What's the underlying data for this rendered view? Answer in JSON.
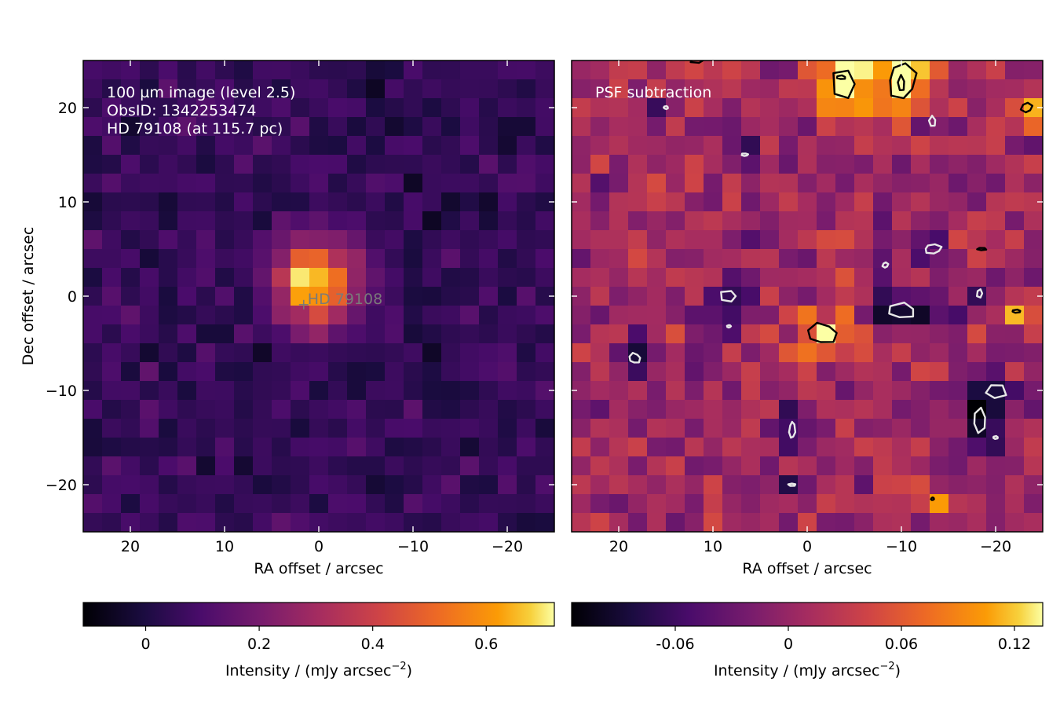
{
  "chart_data": [
    {
      "type": "heatmap",
      "panel": "left",
      "annotations": [
        "100 µm image (level 2.5)",
        "ObsID: 1342253474",
        "HD 79108 (at 115.7 pc)"
      ],
      "xlabel": "RA offset / arcsec",
      "ylabel": "Dec offset / arcsec",
      "xlim": [
        25,
        -25
      ],
      "ylim": [
        -25,
        25
      ],
      "x_ticks": [
        20,
        10,
        0,
        -10,
        -20
      ],
      "x_tick_labels": [
        "20",
        "10",
        "0",
        "−10",
        "−20"
      ],
      "y_ticks": [
        20,
        10,
        0,
        -10,
        -20
      ],
      "y_tick_labels": [
        "20",
        "10",
        "0",
        "−10",
        "−20"
      ],
      "grid": false,
      "pixel_size_arcsec": 2,
      "colormap": "inferno",
      "source": {
        "label": "HD  79108",
        "ra": 1.6,
        "dec": -0.9,
        "marker_color": "#7a7a7a"
      },
      "emission_peak": {
        "ra": 0.3,
        "dec": 1.5,
        "peak_intensity": 0.7,
        "sigma_arcsec": 3.0
      },
      "background_level": 0.05,
      "colorbar": {
        "label": "Intensity / (mJy arcsec",
        "label_sup": "−2",
        "label_end": ")",
        "vmin": -0.11,
        "vmax": 0.72,
        "ticks": [
          0,
          0.2,
          0.4,
          0.6
        ],
        "tick_labels": [
          "0",
          "0.2",
          "0.4",
          "0.6"
        ]
      }
    },
    {
      "type": "heatmap",
      "panel": "right",
      "annotations": [
        "PSF subtraction"
      ],
      "xlabel": "RA offset / arcsec",
      "xlim": [
        25,
        -25
      ],
      "ylim": [
        -25,
        25
      ],
      "x_ticks": [
        20,
        10,
        0,
        -10,
        -20
      ],
      "x_tick_labels": [
        "20",
        "10",
        "0",
        "−10",
        "−20"
      ],
      "grid": false,
      "pixel_size_arcsec": 2,
      "colormap": "inferno",
      "contours": {
        "positive_color": "#000000",
        "negative_color": "#e8e8e8",
        "positive": [
          {
            "ra": -4.0,
            "dec": 22.5,
            "w": 2.6,
            "h": 3.4
          },
          {
            "ra": -3.6,
            "dec": 23.2,
            "w": 1.0,
            "h": 0.4
          },
          {
            "ra": -10.0,
            "dec": 22.8,
            "w": 3.0,
            "h": 3.8
          },
          {
            "ra": -10.0,
            "dec": 22.5,
            "w": 0.8,
            "h": 1.8
          },
          {
            "ra": -23.3,
            "dec": 20.0,
            "w": 1.2,
            "h": 1.1
          },
          {
            "ra": -1.6,
            "dec": -4.0,
            "w": 3.2,
            "h": 2.2
          },
          {
            "ra": -18.5,
            "dec": 5.0,
            "w": 1.0,
            "h": 0.3
          },
          {
            "ra": -22.2,
            "dec": -1.6,
            "w": 1.0,
            "h": 0.3
          },
          {
            "ra": -13.3,
            "dec": -21.5,
            "w": 0.3,
            "h": 0.3
          },
          {
            "ra": 11.7,
            "dec": 25.0,
            "w": 1.4,
            "h": 0.5
          }
        ],
        "negative": [
          {
            "ra": 8.3,
            "dec": 0.0,
            "w": 1.8,
            "h": 1.3
          },
          {
            "ra": -10.0,
            "dec": -1.6,
            "w": 3.0,
            "h": 1.6
          },
          {
            "ra": -13.3,
            "dec": 5.0,
            "w": 1.8,
            "h": 1.0
          },
          {
            "ra": -13.3,
            "dec": 18.5,
            "w": 0.8,
            "h": 1.2
          },
          {
            "ra": -8.3,
            "dec": 3.3,
            "w": 0.6,
            "h": 0.6
          },
          {
            "ra": 18.3,
            "dec": -6.6,
            "w": 1.2,
            "h": 1.1
          },
          {
            "ra": -20.0,
            "dec": -10.1,
            "w": 2.2,
            "h": 1.7
          },
          {
            "ra": -18.3,
            "dec": -13.2,
            "w": 1.4,
            "h": 2.4
          },
          {
            "ra": 1.6,
            "dec": -14.2,
            "w": 0.6,
            "h": 1.8
          },
          {
            "ra": -18.3,
            "dec": 0.3,
            "w": 0.6,
            "h": 0.9
          },
          {
            "ra": 6.6,
            "dec": 15.0,
            "w": 0.7,
            "h": 0.3
          },
          {
            "ra": 15.0,
            "dec": 20.0,
            "w": 0.5,
            "h": 0.3
          },
          {
            "ra": 1.6,
            "dec": -20.0,
            "w": 0.8,
            "h": 0.3
          },
          {
            "ra": -20.0,
            "dec": -15.0,
            "w": 0.6,
            "h": 0.3
          },
          {
            "ra": 8.3,
            "dec": -3.2,
            "w": 0.4,
            "h": 0.3
          }
        ]
      },
      "colorbar": {
        "label": "Intensity / (mJy arcsec",
        "label_sup": "−2",
        "label_end": ")",
        "vmin": -0.115,
        "vmax": 0.135,
        "ticks": [
          -0.06,
          0,
          0.06,
          0.12
        ],
        "tick_labels": [
          "-0.06",
          "0",
          "0.06",
          "0.12"
        ]
      }
    }
  ]
}
